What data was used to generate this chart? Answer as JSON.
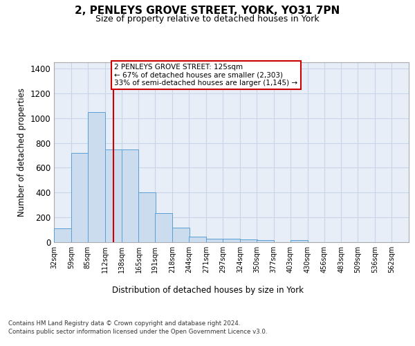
{
  "title_line1": "2, PENLEYS GROVE STREET, YORK, YO31 7PN",
  "title_line2": "Size of property relative to detached houses in York",
  "xlabel": "Distribution of detached houses by size in York",
  "ylabel": "Number of detached properties",
  "bin_labels": [
    "32sqm",
    "59sqm",
    "85sqm",
    "112sqm",
    "138sqm",
    "165sqm",
    "191sqm",
    "218sqm",
    "244sqm",
    "271sqm",
    "297sqm",
    "324sqm",
    "350sqm",
    "377sqm",
    "403sqm",
    "430sqm",
    "456sqm",
    "483sqm",
    "509sqm",
    "536sqm",
    "562sqm"
  ],
  "bin_edges": [
    32,
    59,
    85,
    112,
    138,
    165,
    191,
    218,
    244,
    271,
    297,
    324,
    350,
    377,
    403,
    430,
    456,
    483,
    509,
    536,
    562
  ],
  "bin_width": 27,
  "bar_heights": [
    110,
    720,
    1050,
    750,
    750,
    400,
    235,
    115,
    42,
    28,
    28,
    22,
    15,
    0,
    15,
    0,
    0,
    0,
    0,
    0,
    0
  ],
  "bar_color": "#ccdcef",
  "bar_edge_color": "#5a9fd4",
  "grid_color": "#c8d4e8",
  "background_color": "#e8eef8",
  "property_line_x": 125,
  "property_line_color": "#cc0000",
  "annotation_text": "2 PENLEYS GROVE STREET: 125sqm\n← 67% of detached houses are smaller (2,303)\n33% of semi-detached houses are larger (1,145) →",
  "annotation_box_edgecolor": "#cc0000",
  "ylim": [
    0,
    1450
  ],
  "yticks": [
    0,
    200,
    400,
    600,
    800,
    1000,
    1200,
    1400
  ],
  "footer_line1": "Contains HM Land Registry data © Crown copyright and database right 2024.",
  "footer_line2": "Contains public sector information licensed under the Open Government Licence v3.0."
}
